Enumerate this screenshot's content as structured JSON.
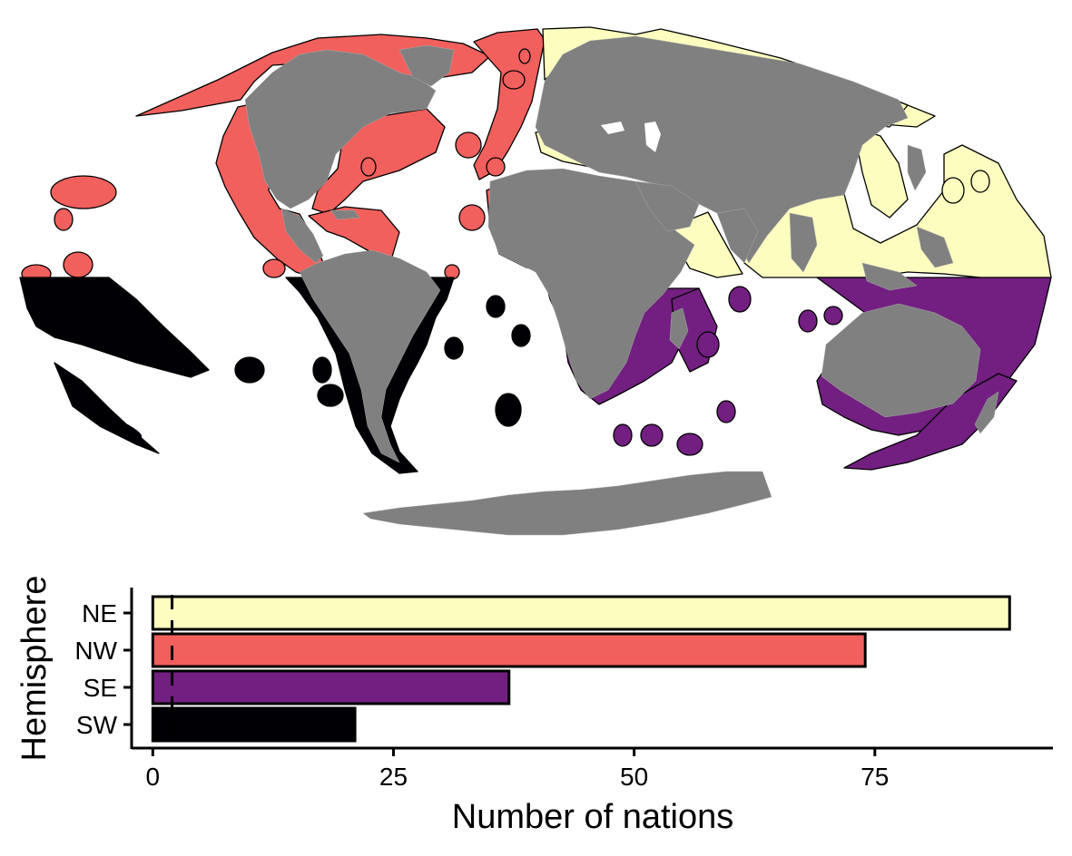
{
  "colors": {
    "NE": "#fcfdbf",
    "NW": "#f1605d",
    "SE": "#721f81",
    "SW": "#000004",
    "land": "#808080",
    "outline": "#000000"
  },
  "map": {
    "type": "map",
    "projection": "pseudocylindrical world map",
    "legend": "none",
    "eez_regions": [
      {
        "hemisphere": "NE",
        "color": "#fcfdbf"
      },
      {
        "hemisphere": "NW",
        "color": "#f1605d"
      },
      {
        "hemisphere": "SE",
        "color": "#721f81"
      },
      {
        "hemisphere": "SW",
        "color": "#000004"
      }
    ]
  },
  "chart_data": {
    "type": "bar",
    "orientation": "horizontal",
    "categories": [
      "NE",
      "NW",
      "SE",
      "SW"
    ],
    "values": [
      89,
      74,
      37,
      21
    ],
    "bar_colors": [
      "#fcfdbf",
      "#f1605d",
      "#721f81",
      "#000004"
    ],
    "reference_line": {
      "x": 2,
      "style": "dashed"
    },
    "xlabel": "Number of nations",
    "ylabel": "Hemisphere",
    "xticks": [
      0,
      25,
      50,
      75
    ],
    "xlim": [
      -2.2,
      93.5
    ],
    "grid": false,
    "legend": "none"
  }
}
